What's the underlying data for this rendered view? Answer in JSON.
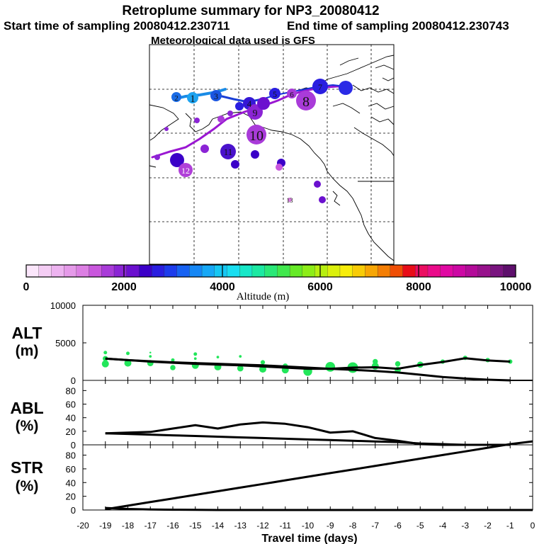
{
  "header": {
    "title": "Retroplume summary for NP3_20080412",
    "start_label": "Start time of sampling 20080412.230711",
    "end_label": "End time of sampling 20080412.230743",
    "met_label": "Meteorological data used is GFS"
  },
  "colorbar": {
    "title": "Altitude (m)",
    "ticks": [
      "0",
      "2000",
      "4000",
      "6000",
      "8000",
      "10000"
    ],
    "colors": [
      "#fbe6fb",
      "#f4cdf4",
      "#edb3f0",
      "#e59ae9",
      "#dc7fe3",
      "#c957dd",
      "#a93bd9",
      "#8b24d5",
      "#6b10cf",
      "#3b00c8",
      "#2a1ee0",
      "#1d3cec",
      "#1762f2",
      "#1687f5",
      "#17a8f6",
      "#16c7f3",
      "#19def0",
      "#18e8c8",
      "#1ce9a2",
      "#2ae878",
      "#41e84e",
      "#66ea27",
      "#8ded18",
      "#b7ef10",
      "#dbf00d",
      "#f7ed0b",
      "#f8cc07",
      "#f7a605",
      "#f47e04",
      "#ef4e05",
      "#e80d18",
      "#eb0e61",
      "#ea0b8a",
      "#e009a2",
      "#cc08a4",
      "#b30b99",
      "#97128c",
      "#79147f",
      "#5e0f6c"
    ]
  },
  "map": {
    "day_labels": [
      {
        "text": "1",
        "color": "#2a2ae6"
      },
      {
        "text": "2",
        "color": "#1d1dde"
      },
      {
        "text": "3",
        "color": "#2a2ae6"
      },
      {
        "text": "4",
        "color": "#3d3de8"
      },
      {
        "text": "5",
        "color": "#3d1ad5"
      },
      {
        "text": "6",
        "color": "#7b0ed4"
      },
      {
        "text": "7",
        "color": "#7b0ed4"
      },
      {
        "text": "8",
        "color": "#7b0ed4"
      },
      {
        "text": "9",
        "color": "#5b0fcf"
      },
      {
        "text": "10",
        "color": "#a020d8"
      },
      {
        "text": "11",
        "color": "#4a12cc"
      },
      {
        "text": "12",
        "color": "#b040d8"
      },
      {
        "text": "13",
        "color": "#c050d8"
      }
    ]
  },
  "chart_data": [
    {
      "type": "line",
      "name": "ALT",
      "ylabel": "ALT (m)",
      "ylim": [
        0,
        10000
      ],
      "yticks": [
        "10000",
        "5000",
        "0"
      ],
      "x": [
        -19,
        -18,
        -17,
        -16,
        -15,
        -14,
        -13,
        -12,
        -11,
        -10,
        -9,
        -8,
        -7,
        -6,
        -5,
        -4,
        -3,
        -2,
        -1
      ],
      "series": [
        {
          "name": "mean altitude",
          "values": [
            2900,
            2700,
            2500,
            2350,
            2200,
            2100,
            2000,
            1850,
            1700,
            1550,
            1550,
            1700,
            1750,
            1550,
            2050,
            2450,
            2950,
            2650,
            2500
          ]
        },
        {
          "name": "lower altitude",
          "values": [
            2900,
            2700,
            2550,
            2400,
            2300,
            2200,
            2100,
            2000,
            1850,
            1700,
            1550,
            1400,
            1250,
            1050,
            750,
            450,
            250,
            100,
            0
          ]
        }
      ],
      "plume_points": [
        {
          "x": -19,
          "y": 2200,
          "size": 8
        },
        {
          "x": -19,
          "y": 3700,
          "size": 4
        },
        {
          "x": -19,
          "y": 2900,
          "size": 6
        },
        {
          "x": -18,
          "y": 2300,
          "size": 8
        },
        {
          "x": -18,
          "y": 3600,
          "size": 4
        },
        {
          "x": -17,
          "y": 2300,
          "size": 7
        },
        {
          "x": -17,
          "y": 3200,
          "size": 3
        },
        {
          "x": -17,
          "y": 3700,
          "size": 2
        },
        {
          "x": -16,
          "y": 1700,
          "size": 6
        },
        {
          "x": -16,
          "y": 2700,
          "size": 4
        },
        {
          "x": -15,
          "y": 2000,
          "size": 8
        },
        {
          "x": -15,
          "y": 3500,
          "size": 4
        },
        {
          "x": -15,
          "y": 2900,
          "size": 3
        },
        {
          "x": -14,
          "y": 1800,
          "size": 8
        },
        {
          "x": -14,
          "y": 3100,
          "size": 3
        },
        {
          "x": -13,
          "y": 1600,
          "size": 7
        },
        {
          "x": -13,
          "y": 3200,
          "size": 3
        },
        {
          "x": -12,
          "y": 1500,
          "size": 8
        },
        {
          "x": -12,
          "y": 2400,
          "size": 5
        },
        {
          "x": -11,
          "y": 1400,
          "size": 8
        },
        {
          "x": -11,
          "y": 1900,
          "size": 6
        },
        {
          "x": -10,
          "y": 1200,
          "size": 10
        },
        {
          "x": -9,
          "y": 1800,
          "size": 11
        },
        {
          "x": -8,
          "y": 1700,
          "size": 12
        },
        {
          "x": -7,
          "y": 1900,
          "size": 8
        },
        {
          "x": -7,
          "y": 2500,
          "size": 6
        },
        {
          "x": -6,
          "y": 1400,
          "size": 7
        },
        {
          "x": -6,
          "y": 2200,
          "size": 6
        },
        {
          "x": -5,
          "y": 2100,
          "size": 7
        },
        {
          "x": -4,
          "y": 2500,
          "size": 5
        },
        {
          "x": -3,
          "y": 3000,
          "size": 5
        },
        {
          "x": -2,
          "y": 2700,
          "size": 5
        },
        {
          "x": -1,
          "y": 2500,
          "size": 5
        }
      ],
      "plume_color": "#22e65a"
    },
    {
      "type": "line",
      "name": "ABL",
      "ylabel": "ABL (%)",
      "ylim": [
        0,
        95
      ],
      "yticks": [
        "80",
        "60",
        "40",
        "20",
        "0"
      ],
      "x": [
        -19,
        -18,
        -17,
        -16,
        -15,
        -14,
        -13,
        -12,
        -11,
        -10,
        -9,
        -8,
        -7,
        -6,
        -5,
        -4,
        -3,
        -2,
        -1
      ],
      "series": [
        {
          "name": "ABL upper",
          "values": [
            17,
            18,
            19,
            24,
            29,
            24,
            30,
            33,
            31,
            26,
            18,
            20,
            10,
            6,
            1,
            0,
            0,
            0,
            0
          ]
        },
        {
          "name": "ABL lower",
          "values": [
            17,
            16,
            15,
            14,
            13,
            12,
            11,
            10,
            9,
            8,
            7,
            6,
            5,
            4,
            2,
            1,
            0,
            0,
            0
          ]
        }
      ]
    },
    {
      "type": "line",
      "name": "STR",
      "ylabel": "STR (%)",
      "ylim": [
        0,
        95
      ],
      "yticks": [
        "80",
        "60",
        "40",
        "20",
        "0"
      ],
      "x": [
        -19,
        -18,
        -17,
        -16,
        -15,
        -14,
        -13,
        -12,
        -11,
        -10,
        -9,
        -8,
        -7,
        -6,
        -5,
        -4,
        -3,
        -2,
        -1,
        0
      ],
      "series": [
        {
          "name": "STR upper",
          "values": [
            1,
            6.3,
            11.6,
            16.8,
            22.1,
            27.4,
            32.7,
            37.9,
            43.2,
            48.5,
            53.8,
            59,
            64.3,
            69.6,
            74.9,
            80.2,
            85.4,
            90.7,
            96,
            100
          ]
        },
        {
          "name": "STR lower",
          "values": [
            3,
            1.5,
            0.8,
            0.4,
            0.2,
            0,
            0,
            0,
            0,
            0,
            0,
            0,
            0,
            0,
            0,
            0,
            0,
            0,
            0,
            0
          ]
        }
      ]
    }
  ],
  "xaxis": {
    "title": "Travel time (days)",
    "ticks": [
      "-20",
      "-19",
      "-18",
      "-17",
      "-16",
      "-15",
      "-14",
      "-13",
      "-12",
      "-11",
      "-10",
      "-9",
      "-8",
      "-7",
      "-6",
      "-5",
      "-4",
      "-3",
      "-2",
      "-1",
      "0"
    ]
  },
  "panel_labels": {
    "alt_top": "ALT",
    "alt_unit": "(m)",
    "abl_top": "ABL",
    "abl_unit": "(%)",
    "str_top": "STR",
    "str_unit": "(%)"
  }
}
